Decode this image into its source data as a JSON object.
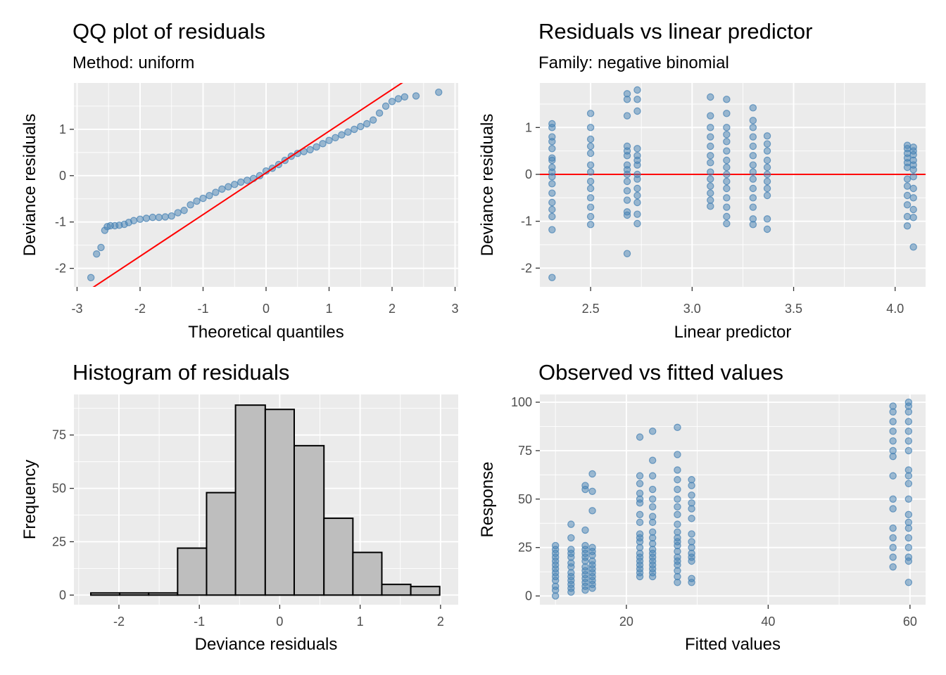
{
  "chart_data": [
    {
      "id": "qq",
      "type": "scatter",
      "title": "QQ plot of residuals",
      "subtitle": "Method: uniform",
      "xlabel": "Theoretical quantiles",
      "ylabel": "Deviance residuals",
      "xlim": [
        -3.05,
        3.05
      ],
      "ylim": [
        -2.4,
        2.0
      ],
      "xticks": [
        -3,
        -2,
        -1,
        0,
        1,
        2,
        3
      ],
      "yticks": [
        -2,
        -1,
        0,
        1
      ],
      "grid": true,
      "point_color": "#4682B4",
      "reference_line": {
        "intercept": 0.06,
        "slope": 0.9,
        "color": "#FF0000"
      },
      "points": [
        [
          -2.78,
          -2.2
        ],
        [
          -2.69,
          -1.69
        ],
        [
          -2.62,
          -1.55
        ],
        [
          -2.56,
          -1.18
        ],
        [
          -2.52,
          -1.1
        ],
        [
          -2.47,
          -1.08
        ],
        [
          -2.4,
          -1.08
        ],
        [
          -2.33,
          -1.07
        ],
        [
          -2.25,
          -1.05
        ],
        [
          -2.18,
          -1.01
        ],
        [
          -2.1,
          -0.97
        ],
        [
          -2.0,
          -0.94
        ],
        [
          -1.9,
          -0.92
        ],
        [
          -1.8,
          -0.9
        ],
        [
          -1.7,
          -0.9
        ],
        [
          -1.6,
          -0.89
        ],
        [
          -1.5,
          -0.87
        ],
        [
          -1.4,
          -0.8
        ],
        [
          -1.3,
          -0.75
        ],
        [
          -1.2,
          -0.63
        ],
        [
          -1.1,
          -0.55
        ],
        [
          -1.0,
          -0.49
        ],
        [
          -0.9,
          -0.43
        ],
        [
          -0.8,
          -0.36
        ],
        [
          -0.7,
          -0.29
        ],
        [
          -0.6,
          -0.24
        ],
        [
          -0.5,
          -0.19
        ],
        [
          -0.4,
          -0.14
        ],
        [
          -0.3,
          -0.1
        ],
        [
          -0.2,
          -0.06
        ],
        [
          -0.1,
          0.0
        ],
        [
          0.0,
          0.1
        ],
        [
          0.1,
          0.16
        ],
        [
          0.2,
          0.24
        ],
        [
          0.3,
          0.33
        ],
        [
          0.4,
          0.42
        ],
        [
          0.5,
          0.48
        ],
        [
          0.6,
          0.52
        ],
        [
          0.7,
          0.56
        ],
        [
          0.8,
          0.62
        ],
        [
          0.9,
          0.69
        ],
        [
          1.0,
          0.76
        ],
        [
          1.1,
          0.82
        ],
        [
          1.2,
          0.88
        ],
        [
          1.3,
          0.94
        ],
        [
          1.4,
          1.0
        ],
        [
          1.5,
          1.06
        ],
        [
          1.6,
          1.12
        ],
        [
          1.7,
          1.2
        ],
        [
          1.8,
          1.35
        ],
        [
          1.9,
          1.5
        ],
        [
          2.0,
          1.6
        ],
        [
          2.1,
          1.66
        ],
        [
          2.2,
          1.7
        ],
        [
          2.38,
          1.72
        ],
        [
          2.74,
          1.8
        ]
      ]
    },
    {
      "id": "resid",
      "type": "scatter",
      "title": "Residuals vs linear predictor",
      "subtitle": "Family: negative binomial",
      "xlabel": "Linear predictor",
      "ylabel": "Deviance residuals",
      "xlim": [
        2.25,
        4.15
      ],
      "ylim": [
        -2.4,
        1.95
      ],
      "xticks": [
        2.5,
        3.0,
        3.5,
        4.0
      ],
      "xtick_labels": [
        "2.5",
        "3.0",
        "3.5",
        "4.0"
      ],
      "yticks": [
        -2,
        -1,
        0,
        1
      ],
      "grid": true,
      "point_color": "#4682B4",
      "reference_line": {
        "y": 0,
        "color": "#FF0000"
      },
      "groups": [
        {
          "x": 2.31,
          "y": [
            1.08,
            1.0,
            0.8,
            0.7,
            0.55,
            0.35,
            0.3,
            0.15,
            0.05,
            -0.05,
            -0.2,
            -0.4,
            -0.6,
            -0.75,
            -0.9,
            -1.18,
            -2.2
          ]
        },
        {
          "x": 2.5,
          "y": [
            1.3,
            1.0,
            0.75,
            0.6,
            0.45,
            0.2,
            0.05,
            -0.15,
            -0.3,
            -0.5,
            -0.7,
            -0.9,
            -1.07
          ]
        },
        {
          "x": 2.68,
          "y": [
            1.72,
            1.6,
            1.25,
            0.6,
            0.5,
            0.4,
            0.2,
            0.1,
            0.0,
            -0.15,
            -0.35,
            -0.55,
            -0.8,
            -0.87,
            -1.69
          ]
        },
        {
          "x": 2.73,
          "y": [
            1.8,
            1.6,
            1.35,
            0.55,
            0.4,
            0.3,
            0.2,
            0.0,
            -0.1,
            -0.3,
            -0.45,
            -0.6,
            -0.85,
            -1.05
          ]
        },
        {
          "x": 3.09,
          "y": [
            1.65,
            1.25,
            1.0,
            0.8,
            0.6,
            0.4,
            0.25,
            0.05,
            -0.1,
            -0.25,
            -0.4,
            -0.55,
            -0.68
          ]
        },
        {
          "x": 3.17,
          "y": [
            1.6,
            1.3,
            1.0,
            0.85,
            0.7,
            0.5,
            0.3,
            0.15,
            0.0,
            -0.15,
            -0.3,
            -0.5,
            -0.7,
            -0.9,
            -1.05
          ]
        },
        {
          "x": 3.3,
          "y": [
            1.42,
            1.15,
            1.0,
            0.8,
            0.6,
            0.4,
            0.2,
            0.05,
            -0.1,
            -0.3,
            -0.5,
            -0.7,
            -0.95,
            -1.07
          ]
        },
        {
          "x": 3.37,
          "y": [
            0.82,
            0.65,
            0.5,
            0.3,
            0.15,
            0.0,
            -0.15,
            -0.3,
            -0.45,
            -0.95,
            -1.17
          ]
        },
        {
          "x": 4.06,
          "y": [
            0.62,
            0.55,
            0.45,
            0.35,
            0.25,
            0.15,
            -0.1,
            -0.25,
            -0.45,
            -0.65,
            -0.9,
            -1.1
          ]
        },
        {
          "x": 4.09,
          "y": [
            0.58,
            0.5,
            0.42,
            0.3,
            0.2,
            0.1,
            -0.05,
            -0.3,
            -0.5,
            -0.75,
            -0.92,
            -1.55
          ]
        }
      ]
    },
    {
      "id": "hist",
      "type": "bar",
      "title": "Histogram of residuals",
      "xlabel": "Deviance residuals",
      "ylabel": "Frequency",
      "xlim": [
        -2.56,
        2.22
      ],
      "ylim": [
        -4.5,
        94
      ],
      "xticks": [
        -2,
        -1,
        0,
        1,
        2
      ],
      "yticks": [
        0,
        25,
        50,
        75
      ],
      "grid": true,
      "bar_fill": "#BEBEBE",
      "bar_stroke": "#000000",
      "bins": [
        {
          "x0": -2.35,
          "x1": -1.99,
          "count": 1
        },
        {
          "x0": -1.99,
          "x1": -1.63,
          "count": 1
        },
        {
          "x0": -1.63,
          "x1": -1.27,
          "count": 1
        },
        {
          "x0": -1.27,
          "x1": -0.91,
          "count": 22
        },
        {
          "x0": -0.91,
          "x1": -0.55,
          "count": 48
        },
        {
          "x0": -0.55,
          "x1": -0.18,
          "count": 89
        },
        {
          "x0": -0.18,
          "x1": 0.18,
          "count": 87
        },
        {
          "x0": 0.18,
          "x1": 0.55,
          "count": 70
        },
        {
          "x0": 0.55,
          "x1": 0.91,
          "count": 36
        },
        {
          "x0": 0.91,
          "x1": 1.27,
          "count": 20
        },
        {
          "x0": 1.27,
          "x1": 1.63,
          "count": 5
        },
        {
          "x0": 1.63,
          "x1": 1.99,
          "count": 4
        }
      ]
    },
    {
      "id": "obs",
      "type": "scatter",
      "title": "Observed vs fitted values",
      "xlabel": "Fitted values",
      "ylabel": "Response",
      "xlim": [
        7.8,
        62.2
      ],
      "ylim": [
        -4.5,
        104
      ],
      "xticks": [
        20,
        40,
        60
      ],
      "yticks": [
        0,
        25,
        50,
        75,
        100
      ],
      "grid": true,
      "point_color": "#4682B4",
      "groups": [
        {
          "x": 10.0,
          "y": [
            0,
            3,
            5,
            8,
            10,
            12,
            14,
            16,
            18,
            20,
            22,
            24,
            26
          ]
        },
        {
          "x": 12.2,
          "y": [
            2,
            4,
            6,
            8,
            10,
            12,
            15,
            17,
            20,
            22,
            24,
            30,
            37
          ]
        },
        {
          "x": 14.2,
          "y": [
            3,
            5,
            7,
            9,
            11,
            13,
            15,
            18,
            20,
            22,
            24,
            26,
            34,
            55,
            57
          ]
        },
        {
          "x": 15.2,
          "y": [
            4,
            6,
            8,
            10,
            12,
            14,
            16,
            18,
            21,
            23,
            25,
            44,
            54,
            63
          ]
        },
        {
          "x": 21.9,
          "y": [
            10,
            12,
            14,
            16,
            18,
            20,
            22,
            25,
            28,
            30,
            32,
            38,
            42,
            48,
            50,
            53,
            58,
            62,
            82
          ]
        },
        {
          "x": 23.7,
          "y": [
            10,
            12,
            14,
            16,
            18,
            20,
            22,
            24,
            27,
            30,
            33,
            38,
            41,
            46,
            50,
            55,
            62,
            70,
            85
          ]
        },
        {
          "x": 27.2,
          "y": [
            7,
            10,
            13,
            16,
            18,
            20,
            23,
            26,
            28,
            30,
            33,
            37,
            42,
            46,
            50,
            55,
            60,
            65,
            73,
            87
          ]
        },
        {
          "x": 29.2,
          "y": [
            7,
            9,
            18,
            20,
            22,
            25,
            28,
            32,
            40,
            45,
            48,
            52,
            57,
            60
          ]
        },
        {
          "x": 57.6,
          "y": [
            15,
            20,
            25,
            30,
            35,
            45,
            50,
            62,
            72,
            75,
            80,
            85,
            90,
            95,
            98
          ]
        },
        {
          "x": 59.8,
          "y": [
            7,
            18,
            20,
            25,
            30,
            35,
            38,
            42,
            50,
            58,
            62,
            65,
            75,
            80,
            85,
            90,
            95,
            98,
            100
          ]
        }
      ]
    }
  ]
}
